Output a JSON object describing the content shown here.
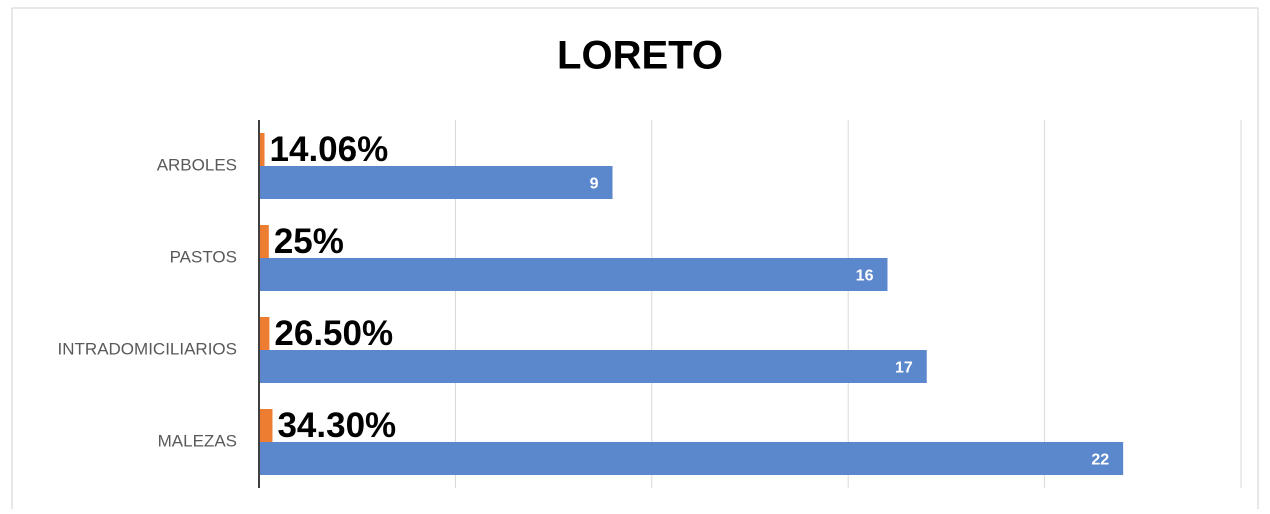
{
  "chart_data": {
    "type": "bar",
    "orientation": "horizontal",
    "title": "LORETO",
    "categories": [
      "ARBOLES",
      "PASTOS",
      "INTRADOMICILIARIOS",
      "MALEZAS"
    ],
    "series": [
      {
        "color": "#ed7d31",
        "values": [
          0.1406,
          0.25,
          0.265,
          0.343
        ],
        "value_labels": [
          "14.06%",
          "25%",
          "26.50%",
          "34.30%"
        ]
      },
      {
        "color": "#5b87cc",
        "values": [
          9,
          16,
          17,
          22
        ]
      }
    ],
    "xlim": [
      0,
      25
    ],
    "xticks": [
      0,
      5,
      10,
      15,
      20,
      25
    ],
    "grid": true
  }
}
